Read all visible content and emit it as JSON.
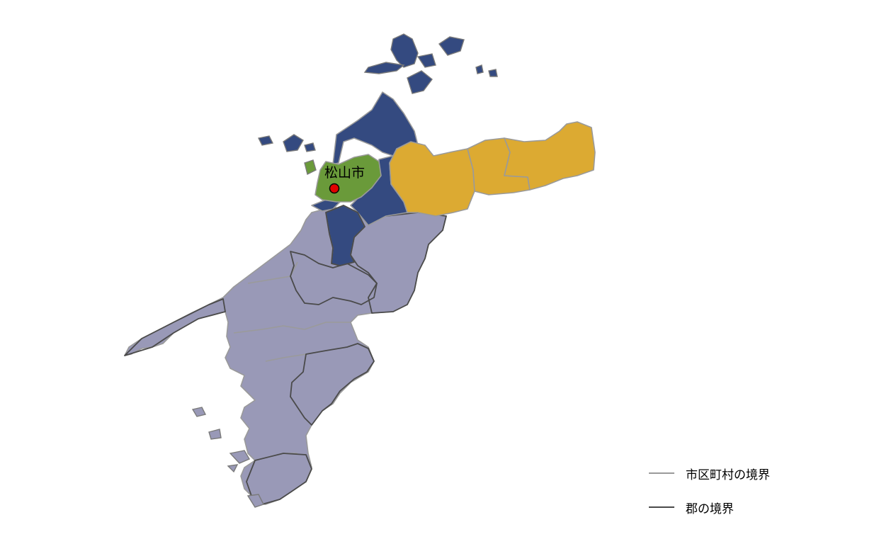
{
  "map": {
    "capital": {
      "label": "松山市",
      "marker_color": "#e00000"
    },
    "colors": {
      "chuyo": "#344a80",
      "matsuyama": "#6a9a3a",
      "toyo": "#dcaa32",
      "nanyo": "#9999b7",
      "municipal_border": "#9a9a9a",
      "county_border": "#4a4a4a"
    }
  },
  "legend": {
    "items": [
      {
        "label": "市区町村の境界",
        "color": "#9a9a9a",
        "icon": "gray-line-icon"
      },
      {
        "label": "郡の境界",
        "color": "#4a4a4a",
        "icon": "dark-line-icon"
      }
    ]
  }
}
